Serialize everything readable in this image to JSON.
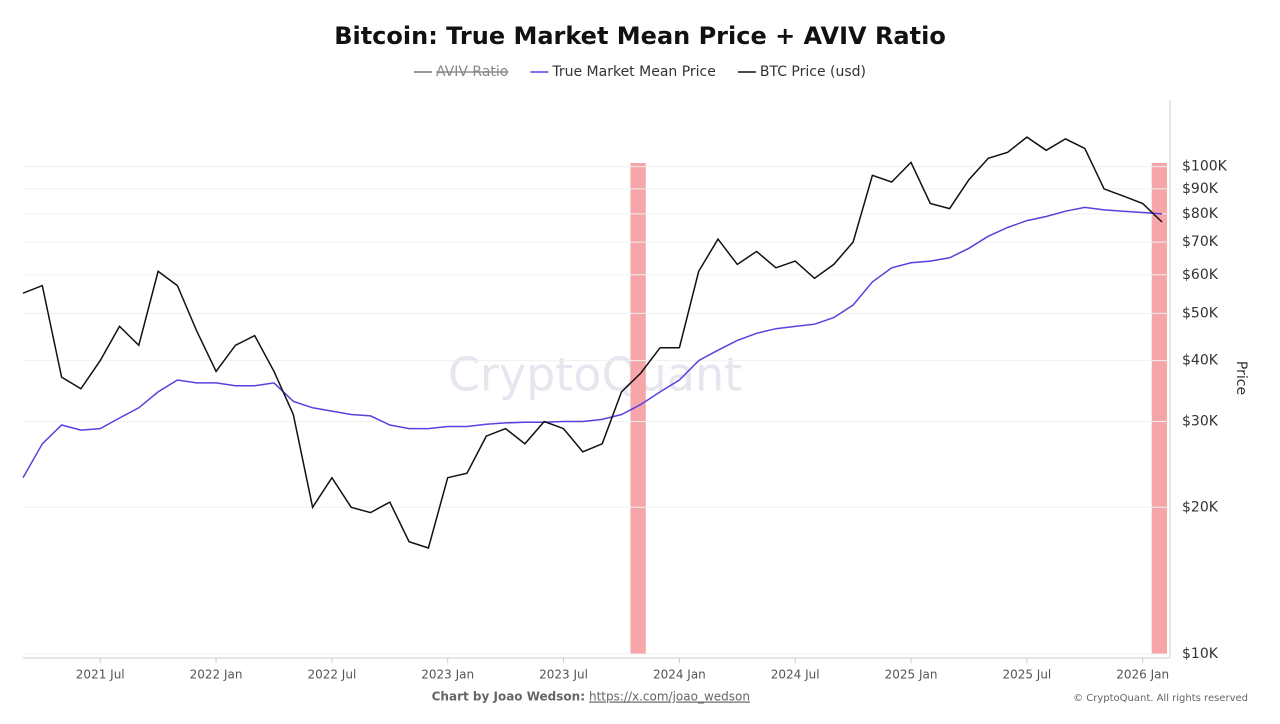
{
  "chart_data": {
    "type": "line",
    "title": "Bitcoin: True Market Mean Price + AVIV Ratio",
    "ylabel": "Price",
    "watermark": "CryptoQuant",
    "credit": "Chart by Joao Wedson:",
    "credit_link": "https://x.com/joao_wedson",
    "copyright": "© CryptoQuant. All rights reserved",
    "log_y": true,
    "grid": true,
    "hidden_series": [
      {
        "name": "AVIV Ratio",
        "color": "#777777"
      }
    ],
    "x": [
      "2021-03",
      "2021-04",
      "2021-05",
      "2021-06",
      "2021-07",
      "2021-08",
      "2021-09",
      "2021-10",
      "2021-11",
      "2021-12",
      "2022-01",
      "2022-02",
      "2022-03",
      "2022-04",
      "2022-05",
      "2022-06",
      "2022-07",
      "2022-08",
      "2022-09",
      "2022-10",
      "2022-11",
      "2022-12",
      "2023-01",
      "2023-02",
      "2023-03",
      "2023-04",
      "2023-05",
      "2023-06",
      "2023-07",
      "2023-08",
      "2023-09",
      "2023-10",
      "2023-11",
      "2023-12",
      "2024-01",
      "2024-02",
      "2024-03",
      "2024-04",
      "2024-05",
      "2024-06",
      "2024-07",
      "2024-08",
      "2024-09",
      "2024-10",
      "2024-11",
      "2024-12",
      "2025-01",
      "2025-02",
      "2025-03",
      "2025-04",
      "2025-05",
      "2025-06",
      "2025-07",
      "2025-08",
      "2025-09",
      "2025-10",
      "2025-11",
      "2025-12",
      "2026-01",
      "2026-02"
    ],
    "series": [
      {
        "name": "True Market Mean Price",
        "color": "#5b3fe0",
        "values": [
          23000,
          27000,
          29500,
          28800,
          29000,
          30500,
          32000,
          34500,
          36500,
          36000,
          36000,
          35500,
          35500,
          36000,
          33000,
          32000,
          31500,
          31000,
          30800,
          29500,
          29000,
          29000,
          29300,
          29300,
          29600,
          29800,
          29900,
          29900,
          30000,
          30000,
          30300,
          31000,
          32500,
          34500,
          36500,
          40000,
          42000,
          44000,
          45500,
          46500,
          47000,
          47500,
          49000,
          52000,
          58000,
          62000,
          63500,
          64000,
          65000,
          68000,
          72000,
          75000,
          77500,
          79000,
          81000,
          82500,
          81500,
          81000,
          80500,
          80000
        ]
      },
      {
        "name": "BTC Price (usd)",
        "color": "#111111",
        "values": [
          55000,
          57000,
          37000,
          35000,
          40000,
          47000,
          43000,
          61000,
          57000,
          46000,
          38000,
          43000,
          45000,
          38000,
          31000,
          20000,
          23000,
          20000,
          19500,
          20500,
          17000,
          16500,
          23000,
          23500,
          28000,
          29000,
          27000,
          30000,
          29000,
          26000,
          27000,
          34500,
          37700,
          42500,
          42500,
          61000,
          71000,
          63000,
          67000,
          62000,
          64000,
          59000,
          63000,
          70000,
          96000,
          93000,
          102000,
          84000,
          82000,
          94000,
          104000,
          107000,
          115000,
          108000,
          114000,
          109000,
          90000,
          87000,
          84000,
          77000
        ]
      }
    ],
    "highlights": [
      {
        "start": "2023-10",
        "end": "2023-11"
      },
      {
        "start": "2026-01",
        "end": "2026-02"
      }
    ],
    "highlight_color": "#f6a5a8",
    "xlim": [
      "2021-03",
      "2026-02"
    ],
    "xticks": [
      {
        "value": "2021-07",
        "label": "2021 Jul"
      },
      {
        "value": "2022-01",
        "label": "2022 Jan"
      },
      {
        "value": "2022-07",
        "label": "2022 Jul"
      },
      {
        "value": "2023-01",
        "label": "2023 Jan"
      },
      {
        "value": "2023-07",
        "label": "2023 Jul"
      },
      {
        "value": "2024-01",
        "label": "2024 Jan"
      },
      {
        "value": "2024-07",
        "label": "2024 Jul"
      },
      {
        "value": "2025-01",
        "label": "2025 Jan"
      },
      {
        "value": "2025-07",
        "label": "2025 Jul"
      },
      {
        "value": "2026-01",
        "label": "2026 Jan"
      }
    ],
    "ylim": [
      10000,
      137000
    ],
    "yticks": [
      {
        "value": 10000,
        "label": "$10K"
      },
      {
        "value": 20000,
        "label": "$20K"
      },
      {
        "value": 30000,
        "label": "$30K"
      },
      {
        "value": 40000,
        "label": "$40K"
      },
      {
        "value": 50000,
        "label": "$50K"
      },
      {
        "value": 60000,
        "label": "$60K"
      },
      {
        "value": 70000,
        "label": "$70K"
      },
      {
        "value": 80000,
        "label": "$80K"
      },
      {
        "value": 90000,
        "label": "$90K"
      },
      {
        "value": 100000,
        "label": "$100K"
      }
    ]
  }
}
